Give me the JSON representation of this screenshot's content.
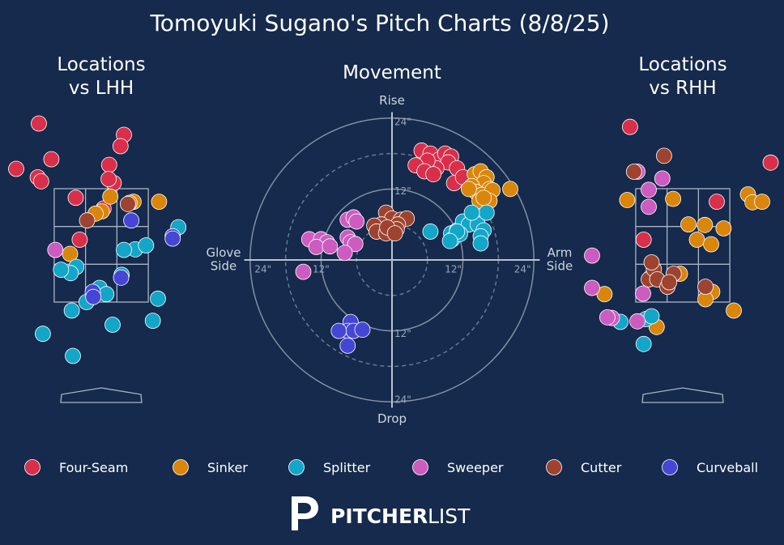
{
  "header": {
    "title": "Tomoyuki Sugano's Pitch Charts (8/8/25)"
  },
  "pitch_colors": {
    "Four-Seam": "#d92f4b",
    "Sinker": "#d9860a",
    "Splitter": "#13a6c8",
    "Sweeper": "#cc5cc0",
    "Cutter": "#9e4330",
    "Curveball": "#4646d6"
  },
  "legend": [
    {
      "name": "Four-Seam"
    },
    {
      "name": "Sinker"
    },
    {
      "name": "Splitter"
    },
    {
      "name": "Sweeper"
    },
    {
      "name": "Cutter"
    },
    {
      "name": "Curveball"
    }
  ],
  "brand": {
    "bold": "PITCHER",
    "light": "LIST",
    "icon": "pitcherlist-logo-icon"
  },
  "chart_data": [
    {
      "type": "scatter",
      "title": "Locations\nvs LHH",
      "xlabel": "",
      "ylabel": "",
      "xlim": [
        -1.6,
        1.6
      ],
      "ylim": [
        0.2,
        5.4
      ],
      "zone": {
        "x": [
          -0.83,
          0.83
        ],
        "y": [
          1.5,
          3.5
        ]
      },
      "series": [
        {
          "name": "Four-Seam",
          "points": [
            [
              -1.1,
              4.65
            ],
            [
              0.4,
              4.45
            ],
            [
              0.34,
              4.25
            ],
            [
              -0.88,
              4.02
            ],
            [
              0.14,
              3.92
            ],
            [
              -1.5,
              3.85
            ],
            [
              -1.12,
              3.7
            ],
            [
              -1.06,
              3.63
            ],
            [
              0.22,
              3.6
            ],
            [
              0.13,
              3.67
            ],
            [
              -0.45,
              3.34
            ],
            [
              0.04,
              3.15
            ],
            [
              -0.38,
              2.6
            ]
          ]
        },
        {
          "name": "Sinker",
          "points": [
            [
              0.16,
              3.36
            ],
            [
              0.57,
              3.27
            ],
            [
              1.02,
              3.27
            ],
            [
              0.5,
              3.25
            ],
            [
              0.01,
              3.1
            ],
            [
              -0.1,
              3.06
            ],
            [
              -0.55,
              2.35
            ]
          ]
        },
        {
          "name": "Splitter",
          "points": [
            [
              1.36,
              2.82
            ],
            [
              0.6,
              2.43
            ],
            [
              0.79,
              2.5
            ],
            [
              0.4,
              2.42
            ],
            [
              -0.44,
              2.12
            ],
            [
              -0.54,
              2.01
            ],
            [
              -0.71,
              2.07
            ],
            [
              0.36,
              1.98
            ],
            [
              -0.03,
              1.75
            ],
            [
              0.09,
              1.64
            ],
            [
              -0.26,
              1.5
            ],
            [
              1.0,
              1.56
            ],
            [
              -0.52,
              1.35
            ],
            [
              0.91,
              1.17
            ],
            [
              0.2,
              1.1
            ],
            [
              -1.03,
              0.94
            ],
            [
              -0.5,
              0.55
            ]
          ]
        },
        {
          "name": "Sweeper",
          "points": [
            [
              -0.81,
              2.42
            ]
          ]
        },
        {
          "name": "Cutter",
          "points": [
            [
              -0.25,
              2.94
            ],
            [
              0.47,
              3.23
            ]
          ]
        },
        {
          "name": "Cutter",
          "points": []
        },
        {
          "name": "Curveball",
          "points": [
            [
              1.26,
              2.66
            ],
            [
              1.26,
              2.62
            ],
            [
              0.53,
              2.94
            ],
            [
              0.35,
              1.93
            ],
            [
              -0.15,
              1.68
            ],
            [
              -0.14,
              1.59
            ]
          ]
        }
      ]
    },
    {
      "type": "scatter",
      "title": "Movement",
      "xlabel_left": "Glove\nSide",
      "xlabel_right": "Arm\nSide",
      "ylabel_top": "Rise",
      "ylabel_bottom": "Drop",
      "xlim": [
        -30,
        30
      ],
      "ylim": [
        -30,
        30
      ],
      "rings": [
        6,
        12,
        18,
        24
      ],
      "ring_labels": [
        "12\"",
        "24\""
      ],
      "series": [
        {
          "name": "Four-Seam",
          "points": [
            [
              5,
              18.5
            ],
            [
              6.5,
              18
            ],
            [
              8,
              17
            ],
            [
              9,
              18
            ],
            [
              10,
              17.5
            ],
            [
              9.5,
              16.5
            ],
            [
              7.5,
              15.5
            ],
            [
              6,
              16.8
            ],
            [
              4,
              16
            ],
            [
              5.5,
              15
            ],
            [
              7,
              14.5
            ],
            [
              11,
              15.5
            ],
            [
              10.5,
              13
            ],
            [
              12,
              14
            ]
          ]
        },
        {
          "name": "Sinker",
          "points": [
            [
              14,
              14.5
            ],
            [
              15,
              15
            ],
            [
              16,
              14
            ],
            [
              15.5,
              13
            ],
            [
              16.5,
              12
            ],
            [
              13.5,
              12.5
            ],
            [
              14.2,
              11.5
            ],
            [
              15.2,
              11
            ],
            [
              16,
              10.5
            ],
            [
              14.8,
              10
            ],
            [
              13,
              12
            ],
            [
              17,
              11.8
            ],
            [
              16.5,
              10
            ],
            [
              15.5,
              10.5
            ],
            [
              20,
              12
            ]
          ]
        },
        {
          "name": "Splitter",
          "points": [
            [
              6.5,
              4.8
            ],
            [
              10,
              4.5
            ],
            [
              10.2,
              3.5
            ],
            [
              11,
              5
            ],
            [
              12,
              6.5
            ],
            [
              13,
              6
            ],
            [
              14.5,
              6
            ],
            [
              15.5,
              5
            ],
            [
              16,
              8
            ],
            [
              13.5,
              8
            ],
            [
              15,
              4
            ],
            [
              11.5,
              4.4
            ],
            [
              15,
              2.8
            ],
            [
              11,
              4.8
            ],
            [
              9.8,
              3.2
            ]
          ]
        },
        {
          "name": "Sweeper",
          "points": [
            [
              -7.5,
              6.8
            ],
            [
              -6.5,
              7.2
            ],
            [
              -6,
              6.5
            ],
            [
              -14,
              3.5
            ],
            [
              -12,
              3.5
            ],
            [
              -11,
              3
            ],
            [
              -12.8,
              2.2
            ],
            [
              -10.5,
              2.3
            ],
            [
              -7.5,
              3.8
            ],
            [
              -7,
              3
            ],
            [
              -6.2,
              2.7
            ],
            [
              -8,
              1.2
            ],
            [
              -15,
              -2
            ]
          ]
        },
        {
          "name": "Cutter",
          "points": [
            [
              -1,
              8
            ],
            [
              0,
              7
            ],
            [
              1.5,
              6.8
            ],
            [
              2.5,
              7
            ],
            [
              1,
              6
            ],
            [
              -1.8,
              6
            ],
            [
              -3,
              5.8
            ],
            [
              -2.6,
              4.8
            ],
            [
              -1,
              4.5
            ],
            [
              0.8,
              5.2
            ],
            [
              -0.8,
              5.5
            ],
            [
              0.5,
              4.5
            ]
          ]
        },
        {
          "name": "Curveball",
          "points": [
            [
              -7,
              -10.5
            ],
            [
              -7.5,
              -12
            ],
            [
              -6.5,
              -12
            ],
            [
              -5,
              -11.8
            ],
            [
              -9,
              -12
            ],
            [
              -7.5,
              -14.5
            ]
          ]
        }
      ]
    },
    {
      "type": "scatter",
      "title": "Locations\nvs RHH",
      "xlabel": "",
      "ylabel": "",
      "xlim": [
        -1.6,
        1.6
      ],
      "ylim": [
        0.2,
        5.4
      ],
      "zone": {
        "x": [
          -0.83,
          0.83
        ],
        "y": [
          1.5,
          3.5
        ]
      },
      "series": [
        {
          "name": "Four-Seam",
          "points": [
            [
              -0.93,
              4.59
            ],
            [
              1.55,
              3.96
            ],
            [
              0.6,
              3.27
            ],
            [
              -0.69,
              2.6
            ]
          ]
        },
        {
          "name": "Sinker",
          "points": [
            [
              -0.98,
              3.3
            ],
            [
              -0.17,
              3.32
            ],
            [
              1.15,
              3.4
            ],
            [
              1.23,
              3.26
            ],
            [
              1.4,
              3.27
            ],
            [
              0.1,
              2.87
            ],
            [
              0.39,
              2.86
            ],
            [
              0.72,
              2.8
            ],
            [
              0.25,
              2.6
            ],
            [
              0.5,
              2.52
            ],
            [
              -0.05,
              2.0
            ],
            [
              0.52,
              1.68
            ],
            [
              0.4,
              1.55
            ],
            [
              -1.38,
              1.64
            ],
            [
              0.9,
              1.35
            ],
            [
              -0.46,
              1.06
            ]
          ]
        },
        {
          "name": "Splitter",
          "points": [
            [
              -1.1,
              1.15
            ],
            [
              -0.65,
              1.2
            ],
            [
              -0.69,
              0.76
            ],
            [
              -0.55,
              1.25
            ],
            [
              -0.57,
              1.93
            ]
          ]
        },
        {
          "name": "Sweeper",
          "points": [
            [
              -0.8,
              3.8
            ],
            [
              -0.6,
              3.48
            ],
            [
              -0.36,
              3.68
            ],
            [
              -0.6,
              3.18
            ],
            [
              -1.6,
              2.32
            ],
            [
              -1.6,
              1.75
            ],
            [
              -1.25,
              1.22
            ],
            [
              -1.33,
              1.23
            ],
            [
              -0.7,
              1.65
            ],
            [
              -0.8,
              1.16
            ]
          ]
        },
        {
          "name": "Cutter",
          "points": [
            [
              -0.6,
              1.9
            ],
            [
              -0.33,
              4.08
            ],
            [
              -0.51,
              2.08
            ],
            [
              -0.86,
              3.8
            ],
            [
              -0.55,
              2.2
            ],
            [
              -0.45,
              1.9
            ],
            [
              -0.27,
              1.77
            ],
            [
              -0.16,
              2.0
            ],
            [
              -0.24,
              1.85
            ],
            [
              0.4,
              1.77
            ]
          ]
        },
        {
          "name": "Curveball",
          "points": []
        }
      ]
    }
  ]
}
